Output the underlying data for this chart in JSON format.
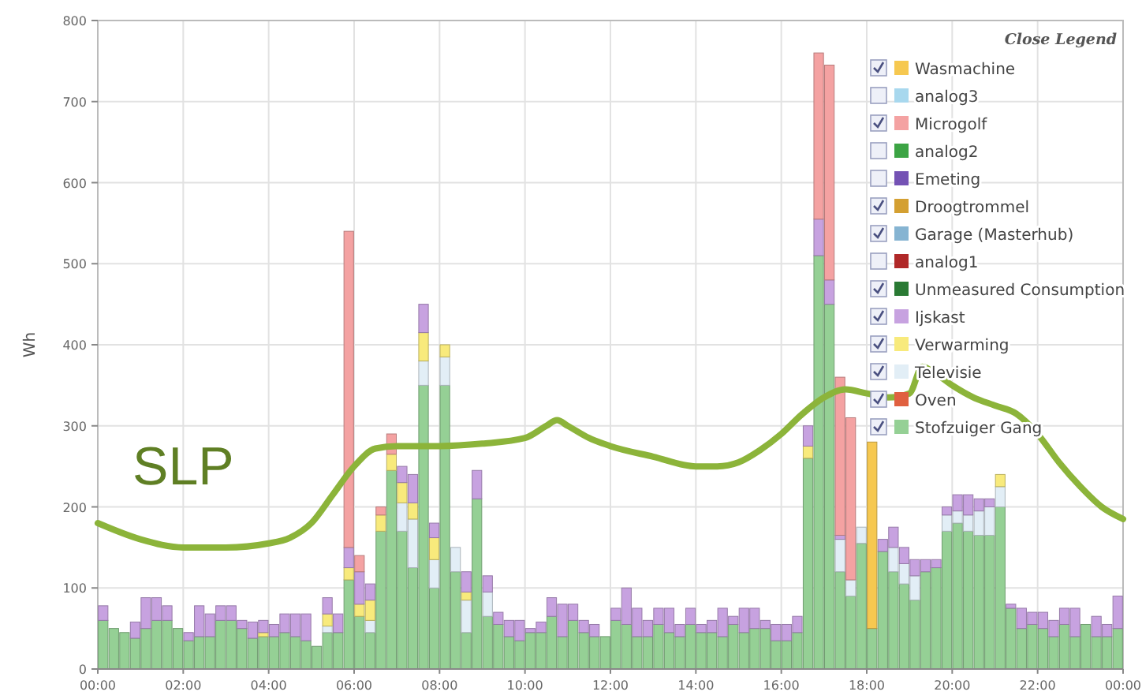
{
  "chart_data": {
    "type": "bar",
    "stacked": true,
    "ylabel": "Wh",
    "legend_title": "Close Legend",
    "legend": "top right",
    "grid": true,
    "xlim": [
      0,
      24
    ],
    "ylim": [
      0,
      800
    ],
    "xticks": [
      {
        "value": 0,
        "label": "00:00"
      },
      {
        "value": 2,
        "label": "02:00"
      },
      {
        "value": 4,
        "label": "04:00"
      },
      {
        "value": 6,
        "label": "06:00"
      },
      {
        "value": 8,
        "label": "08:00"
      },
      {
        "value": 10,
        "label": "10:00"
      },
      {
        "value": 12,
        "label": "12:00"
      },
      {
        "value": 14,
        "label": "14:00"
      },
      {
        "value": 16,
        "label": "16:00"
      },
      {
        "value": 18,
        "label": "18:00"
      },
      {
        "value": 20,
        "label": "20:00"
      },
      {
        "value": 22,
        "label": "22:00"
      },
      {
        "value": 24,
        "label": "00:00"
      }
    ],
    "yticks": [
      0,
      100,
      200,
      300,
      400,
      500,
      600,
      700,
      800
    ],
    "x": [
      0.125,
      0.375,
      0.625,
      0.875,
      1.125,
      1.375,
      1.625,
      1.875,
      2.125,
      2.375,
      2.625,
      2.875,
      3.125,
      3.375,
      3.625,
      3.875,
      4.125,
      4.375,
      4.625,
      4.875,
      5.125,
      5.375,
      5.625,
      5.875,
      6.125,
      6.375,
      6.625,
      6.875,
      7.125,
      7.375,
      7.625,
      7.875,
      8.125,
      8.375,
      8.625,
      8.875,
      9.125,
      9.375,
      9.625,
      9.875,
      10.125,
      10.375,
      10.625,
      10.875,
      11.125,
      11.375,
      11.625,
      11.875,
      12.125,
      12.375,
      12.625,
      12.875,
      13.125,
      13.375,
      13.625,
      13.875,
      14.125,
      14.375,
      14.625,
      14.875,
      15.125,
      15.375,
      15.625,
      15.875,
      16.125,
      16.375,
      16.625,
      16.875,
      17.125,
      17.375,
      17.625,
      17.875,
      18.125,
      18.375,
      18.625,
      18.875,
      19.125,
      19.375,
      19.625,
      19.875,
      20.125,
      20.375,
      20.625,
      20.875,
      21.125,
      21.375,
      21.625,
      21.875,
      22.125,
      22.375,
      22.625,
      22.875,
      23.125,
      23.375,
      23.625,
      23.875
    ],
    "series": [
      {
        "name": "Stofzuiger Gang",
        "color": "#95d095",
        "values": [
          60,
          50,
          45,
          38,
          50,
          60,
          60,
          50,
          35,
          40,
          40,
          60,
          60,
          50,
          38,
          40,
          40,
          45,
          40,
          35,
          28,
          45,
          45,
          110,
          65,
          45,
          170,
          245,
          170,
          125,
          350,
          100,
          350,
          120,
          45,
          210,
          65,
          55,
          40,
          35,
          45,
          45,
          65,
          40,
          60,
          45,
          40,
          40,
          60,
          55,
          40,
          40,
          55,
          45,
          40,
          55,
          45,
          45,
          40,
          55,
          45,
          50,
          50,
          35,
          35,
          45,
          260,
          510,
          450,
          120,
          90,
          155,
          50,
          145,
          120,
          105,
          85,
          120,
          125,
          170,
          180,
          170,
          165,
          165,
          200,
          75,
          50,
          55,
          50,
          40,
          55,
          40,
          55,
          40,
          40,
          50
        ]
      },
      {
        "name": "Oven",
        "color": "#e06040",
        "values": [
          0,
          0,
          0,
          0,
          0,
          0,
          0,
          0,
          0,
          0,
          0,
          0,
          0,
          0,
          0,
          0,
          0,
          0,
          0,
          0,
          0,
          0,
          0,
          0,
          0,
          0,
          0,
          0,
          0,
          0,
          0,
          0,
          0,
          0,
          0,
          0,
          0,
          0,
          0,
          0,
          0,
          0,
          0,
          0,
          0,
          0,
          0,
          0,
          0,
          0,
          0,
          0,
          0,
          0,
          0,
          0,
          0,
          0,
          0,
          0,
          0,
          0,
          0,
          0,
          0,
          0,
          0,
          0,
          0,
          0,
          0,
          0,
          0,
          0,
          0,
          0,
          0,
          0,
          0,
          0,
          0,
          0,
          0,
          0,
          0,
          0,
          0,
          0,
          0,
          0,
          0,
          0,
          0,
          0,
          0,
          0
        ]
      },
      {
        "name": "Televisie",
        "color": "#e2eef6",
        "values": [
          0,
          0,
          0,
          0,
          0,
          0,
          0,
          0,
          0,
          0,
          0,
          0,
          0,
          0,
          0,
          0,
          0,
          0,
          0,
          0,
          0,
          8,
          0,
          0,
          0,
          15,
          0,
          0,
          35,
          60,
          30,
          35,
          35,
          30,
          40,
          0,
          30,
          0,
          0,
          0,
          0,
          0,
          0,
          0,
          0,
          0,
          0,
          0,
          0,
          0,
          0,
          0,
          0,
          0,
          0,
          0,
          0,
          0,
          0,
          0,
          0,
          0,
          0,
          0,
          0,
          0,
          0,
          0,
          0,
          40,
          20,
          20,
          0,
          0,
          30,
          25,
          30,
          0,
          0,
          20,
          15,
          20,
          30,
          35,
          25,
          0,
          0,
          0,
          0,
          0,
          0,
          0,
          0,
          0,
          0,
          0
        ]
      },
      {
        "name": "Verwarming",
        "color": "#f8ea7c",
        "values": [
          0,
          0,
          0,
          0,
          0,
          0,
          0,
          0,
          0,
          0,
          0,
          0,
          0,
          0,
          0,
          5,
          0,
          0,
          0,
          0,
          0,
          15,
          0,
          15,
          15,
          25,
          20,
          20,
          25,
          20,
          35,
          27,
          15,
          0,
          10,
          0,
          0,
          0,
          0,
          0,
          0,
          0,
          0,
          0,
          0,
          0,
          0,
          0,
          0,
          0,
          0,
          0,
          0,
          0,
          0,
          0,
          0,
          0,
          0,
          0,
          0,
          0,
          0,
          0,
          0,
          0,
          15,
          0,
          0,
          0,
          0,
          0,
          0,
          0,
          0,
          0,
          0,
          0,
          0,
          0,
          0,
          0,
          0,
          0,
          15,
          0,
          0,
          0,
          0,
          0,
          0,
          0,
          0,
          0,
          0,
          0
        ]
      },
      {
        "name": "Ijskast",
        "color": "#c7a2e0",
        "values": [
          18,
          0,
          0,
          20,
          38,
          28,
          18,
          0,
          10,
          38,
          28,
          18,
          18,
          10,
          20,
          15,
          15,
          23,
          28,
          33,
          0,
          20,
          23,
          25,
          40,
          20,
          0,
          0,
          20,
          35,
          35,
          18,
          0,
          0,
          25,
          35,
          20,
          15,
          20,
          25,
          5,
          13,
          23,
          40,
          20,
          15,
          15,
          0,
          15,
          45,
          35,
          20,
          20,
          30,
          15,
          20,
          10,
          15,
          35,
          10,
          30,
          25,
          10,
          20,
          20,
          20,
          25,
          45,
          30,
          5,
          0,
          0,
          0,
          15,
          25,
          20,
          20,
          15,
          10,
          10,
          20,
          25,
          15,
          10,
          0,
          5,
          25,
          15,
          20,
          20,
          20,
          35,
          0,
          25,
          15,
          40
        ]
      },
      {
        "name": "Unmeasured Consumption",
        "color": "#2a7a34",
        "values": [
          0,
          0,
          0,
          0,
          0,
          0,
          0,
          0,
          0,
          0,
          0,
          0,
          0,
          0,
          0,
          0,
          0,
          0,
          0,
          0,
          0,
          0,
          0,
          0,
          0,
          0,
          0,
          0,
          0,
          0,
          0,
          0,
          0,
          0,
          0,
          0,
          0,
          0,
          0,
          0,
          0,
          0,
          0,
          0,
          0,
          0,
          0,
          0,
          0,
          0,
          0,
          0,
          0,
          0,
          0,
          0,
          0,
          0,
          0,
          0,
          0,
          0,
          0,
          0,
          0,
          0,
          0,
          0,
          0,
          0,
          0,
          0,
          0,
          0,
          0,
          0,
          0,
          0,
          0,
          0,
          0,
          0,
          0,
          0,
          0,
          0,
          0,
          0,
          0,
          0,
          0,
          0,
          0,
          0,
          0,
          0
        ]
      },
      {
        "name": "analog1",
        "color": "#b02828",
        "values": [
          null,
          null,
          null,
          null,
          null,
          null,
          null,
          null,
          null,
          null,
          null,
          null,
          null,
          null,
          null,
          null,
          null,
          null,
          null,
          null,
          null,
          null,
          null,
          null,
          null,
          null,
          null,
          null,
          null,
          null,
          null,
          null,
          null,
          null,
          null,
          null,
          null,
          null,
          null,
          null,
          null,
          null,
          null,
          null,
          null,
          null,
          null,
          null,
          null,
          null,
          null,
          null,
          null,
          null,
          null,
          null,
          null,
          null,
          null,
          null,
          null,
          null,
          null,
          null,
          null,
          null,
          null,
          null,
          null,
          null,
          null,
          null,
          null,
          null,
          null,
          null,
          null,
          null,
          null,
          null,
          null,
          null,
          null,
          null,
          null,
          null,
          null,
          null,
          null,
          null,
          null,
          null,
          null,
          null,
          null,
          null
        ]
      },
      {
        "name": "Garage (Masterhub)",
        "color": "#86b4d2",
        "values": [
          0,
          0,
          0,
          0,
          0,
          0,
          0,
          0,
          0,
          0,
          0,
          0,
          0,
          0,
          0,
          0,
          0,
          0,
          0,
          0,
          0,
          0,
          0,
          0,
          0,
          0,
          0,
          0,
          0,
          0,
          0,
          0,
          0,
          0,
          0,
          0,
          0,
          0,
          0,
          0,
          0,
          0,
          0,
          0,
          0,
          0,
          0,
          0,
          0,
          0,
          0,
          0,
          0,
          0,
          0,
          0,
          0,
          0,
          0,
          0,
          0,
          0,
          0,
          0,
          0,
          0,
          0,
          0,
          0,
          0,
          0,
          0,
          0,
          0,
          0,
          0,
          0,
          0,
          0,
          0,
          0,
          0,
          0,
          0,
          0,
          0,
          0,
          0,
          0,
          0,
          0,
          0,
          0,
          0,
          0,
          0
        ]
      },
      {
        "name": "Droogtrommel",
        "color": "#d4a032",
        "values": [
          0,
          0,
          0,
          0,
          0,
          0,
          0,
          0,
          0,
          0,
          0,
          0,
          0,
          0,
          0,
          0,
          0,
          0,
          0,
          0,
          0,
          0,
          0,
          0,
          0,
          0,
          0,
          0,
          0,
          0,
          0,
          0,
          0,
          0,
          0,
          0,
          0,
          0,
          0,
          0,
          0,
          0,
          0,
          0,
          0,
          0,
          0,
          0,
          0,
          0,
          0,
          0,
          0,
          0,
          0,
          0,
          0,
          0,
          0,
          0,
          0,
          0,
          0,
          0,
          0,
          0,
          0,
          0,
          0,
          0,
          0,
          0,
          0,
          0,
          0,
          0,
          0,
          0,
          0,
          0,
          0,
          0,
          0,
          0,
          0,
          0,
          0,
          0,
          0,
          0,
          0,
          0,
          0,
          0,
          0,
          0
        ]
      },
      {
        "name": "Emeting",
        "color": "#7452b4",
        "values": [
          null,
          null,
          null,
          null,
          null,
          null,
          null,
          null,
          null,
          null,
          null,
          null,
          null,
          null,
          null,
          null,
          null,
          null,
          null,
          null,
          null,
          null,
          null,
          null,
          null,
          null,
          null,
          null,
          null,
          null,
          null,
          null,
          null,
          null,
          null,
          null,
          null,
          null,
          null,
          null,
          null,
          null,
          null,
          null,
          null,
          null,
          null,
          null,
          null,
          null,
          null,
          null,
          null,
          null,
          null,
          null,
          null,
          null,
          null,
          null,
          null,
          null,
          null,
          null,
          null,
          null,
          null,
          null,
          null,
          null,
          null,
          null,
          null,
          null,
          null,
          null,
          null,
          null,
          null,
          null,
          null,
          null,
          null,
          null,
          null,
          null,
          null,
          null,
          null,
          null,
          null,
          null,
          null,
          null,
          null,
          null
        ]
      },
      {
        "name": "analog2",
        "color": "#3ca444",
        "values": [
          null,
          null,
          null,
          null,
          null,
          null,
          null,
          null,
          null,
          null,
          null,
          null,
          null,
          null,
          null,
          null,
          null,
          null,
          null,
          null,
          null,
          null,
          null,
          null,
          null,
          null,
          null,
          null,
          null,
          null,
          null,
          null,
          null,
          null,
          null,
          null,
          null,
          null,
          null,
          null,
          null,
          null,
          null,
          null,
          null,
          null,
          null,
          null,
          null,
          null,
          null,
          null,
          null,
          null,
          null,
          null,
          null,
          null,
          null,
          null,
          null,
          null,
          null,
          null,
          null,
          null,
          null,
          null,
          null,
          null,
          null,
          null,
          null,
          null,
          null,
          null,
          null,
          null,
          null,
          null,
          null,
          null,
          null,
          null,
          null,
          null,
          null,
          null,
          null,
          null,
          null,
          null,
          null,
          null,
          null,
          null
        ]
      },
      {
        "name": "Microgolf",
        "color": "#f4a2a2",
        "values": [
          0,
          0,
          0,
          0,
          0,
          0,
          0,
          0,
          0,
          0,
          0,
          0,
          0,
          0,
          0,
          0,
          0,
          0,
          0,
          0,
          0,
          0,
          0,
          390,
          20,
          0,
          10,
          25,
          0,
          0,
          0,
          0,
          0,
          0,
          0,
          0,
          0,
          0,
          0,
          0,
          0,
          0,
          0,
          0,
          0,
          0,
          0,
          0,
          0,
          0,
          0,
          0,
          0,
          0,
          0,
          0,
          0,
          0,
          0,
          0,
          0,
          0,
          0,
          0,
          0,
          0,
          0,
          205,
          265,
          195,
          200,
          0,
          0,
          0,
          0,
          0,
          0,
          0,
          0,
          0,
          0,
          0,
          0,
          0,
          0,
          0,
          0,
          0,
          0,
          0,
          0,
          0,
          0,
          0,
          0,
          0
        ]
      },
      {
        "name": "analog3",
        "color": "#a8d8ee",
        "values": [
          null,
          null,
          null,
          null,
          null,
          null,
          null,
          null,
          null,
          null,
          null,
          null,
          null,
          null,
          null,
          null,
          null,
          null,
          null,
          null,
          null,
          null,
          null,
          null,
          null,
          null,
          null,
          null,
          null,
          null,
          null,
          null,
          null,
          null,
          null,
          null,
          null,
          null,
          null,
          null,
          null,
          null,
          null,
          null,
          null,
          null,
          null,
          null,
          null,
          null,
          null,
          null,
          null,
          null,
          null,
          null,
          null,
          null,
          null,
          null,
          null,
          null,
          null,
          null,
          null,
          null,
          null,
          null,
          null,
          null,
          null,
          null,
          null,
          null,
          null,
          null,
          null,
          null,
          null,
          null,
          null,
          null,
          null,
          null,
          null,
          null,
          null,
          null,
          null,
          null,
          null,
          null,
          null,
          null,
          null,
          null
        ]
      },
      {
        "name": "Wasmachine",
        "color": "#f6c850",
        "values": [
          0,
          0,
          0,
          0,
          0,
          0,
          0,
          0,
          0,
          0,
          0,
          0,
          0,
          0,
          0,
          0,
          0,
          0,
          0,
          0,
          0,
          0,
          0,
          0,
          0,
          0,
          0,
          0,
          0,
          0,
          0,
          0,
          0,
          0,
          0,
          0,
          0,
          0,
          0,
          0,
          0,
          0,
          0,
          0,
          0,
          0,
          0,
          0,
          0,
          0,
          0,
          0,
          0,
          0,
          0,
          0,
          0,
          0,
          0,
          0,
          0,
          0,
          0,
          0,
          0,
          0,
          0,
          0,
          0,
          0,
          0,
          0,
          230,
          0,
          0,
          0,
          0,
          0,
          0,
          0,
          0,
          0,
          0,
          0,
          0,
          0,
          0,
          0,
          0,
          0,
          0,
          0,
          0,
          0,
          0,
          0
        ]
      },
      {
        "name": "SLP",
        "type": "line",
        "color": "#8cb43a",
        "x": [
          0,
          1,
          2,
          3,
          4,
          4.5,
          5,
          5.5,
          6,
          6.5,
          7,
          8,
          9,
          10,
          10.5,
          10.75,
          11,
          11.5,
          12,
          13,
          14,
          14.5,
          15,
          15.5,
          16,
          16.5,
          17,
          17.5,
          18,
          18.5,
          19,
          19.3,
          19.6,
          20,
          20.5,
          21,
          21.5,
          22,
          22.5,
          23,
          23.5,
          24
        ],
        "values": [
          180,
          160,
          150,
          150,
          155,
          162,
          180,
          215,
          250,
          272,
          275,
          275,
          278,
          285,
          300,
          307,
          300,
          285,
          275,
          262,
          250,
          250,
          255,
          270,
          290,
          315,
          335,
          345,
          340,
          335,
          340,
          373,
          365,
          350,
          335,
          325,
          315,
          290,
          255,
          225,
          200,
          185
        ]
      }
    ]
  }
}
